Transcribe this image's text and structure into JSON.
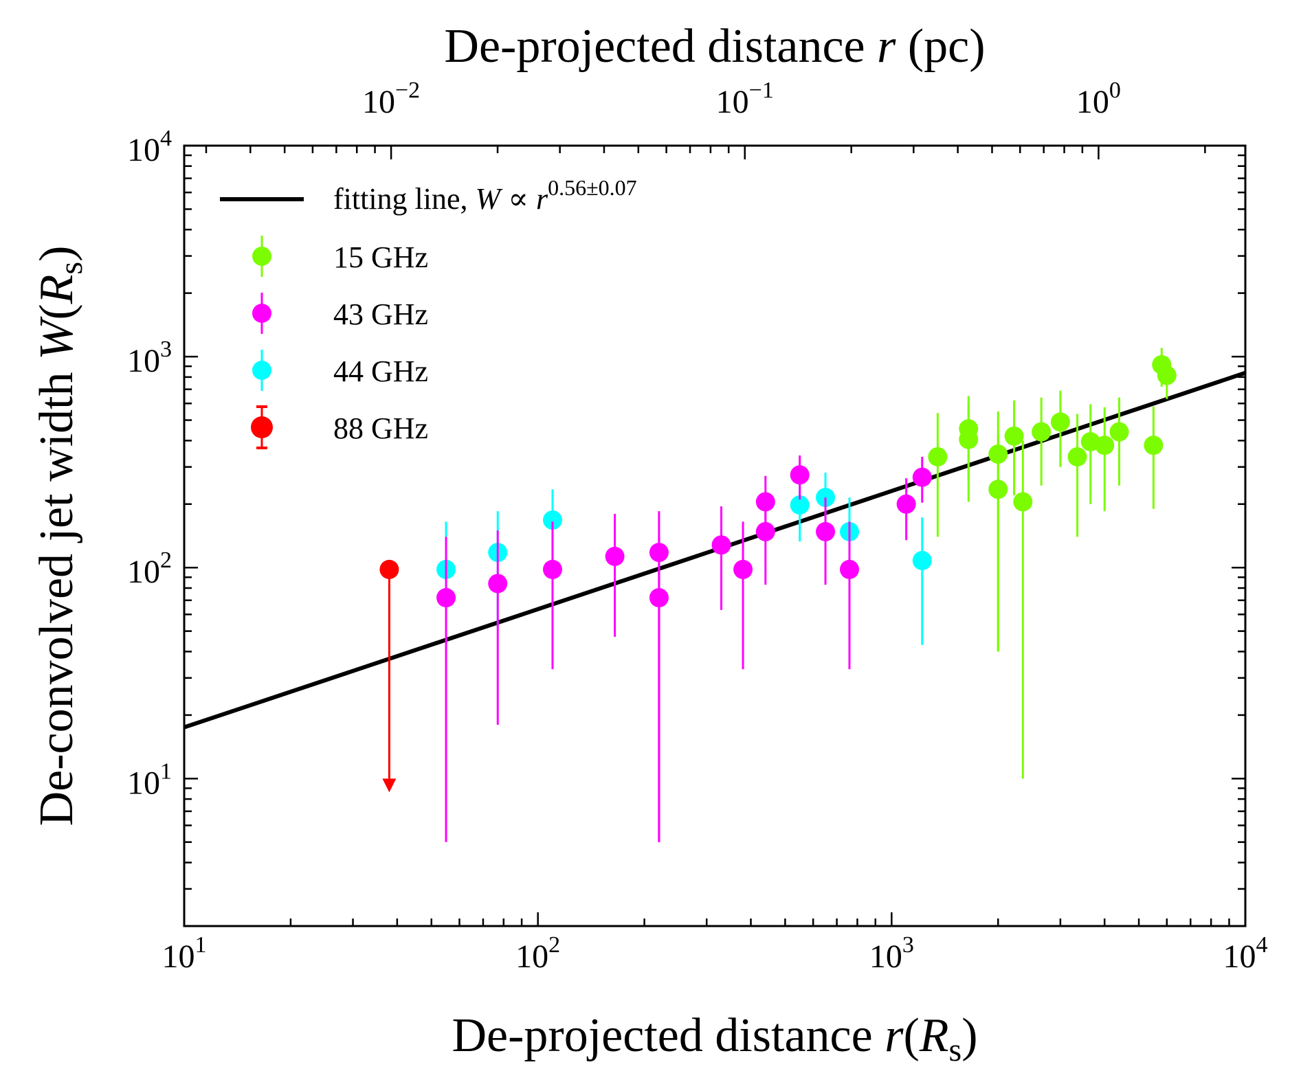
{
  "chart_data": {
    "type": "scatter",
    "x_scale": "log",
    "y_scale": "log",
    "xlim": [
      10,
      10000
    ],
    "ylim": [
      2,
      10000
    ],
    "top_axis_lim": [
      0.0026,
      2.6
    ],
    "xlabel": {
      "prefix": "De-projected distance ",
      "var": "r",
      "open": "(",
      "sym": "R",
      "sub": "s",
      "close": ")"
    },
    "ylabel": {
      "prefix": "De-convolved jet width ",
      "var": "W",
      "open": "(",
      "sym": "R",
      "sub": "s",
      "close": ")"
    },
    "top_label": {
      "prefix": "De-projected distance ",
      "var": "r",
      "suffix": " (pc)"
    },
    "x_ticks": [
      {
        "value": 10,
        "base": "10",
        "exp": "1"
      },
      {
        "value": 100,
        "base": "10",
        "exp": "2"
      },
      {
        "value": 1000,
        "base": "10",
        "exp": "3"
      },
      {
        "value": 10000,
        "base": "10",
        "exp": "4"
      }
    ],
    "y_ticks": [
      {
        "value": 10,
        "base": "10",
        "exp": "1"
      },
      {
        "value": 100,
        "base": "10",
        "exp": "2"
      },
      {
        "value": 1000,
        "base": "10",
        "exp": "3"
      },
      {
        "value": 10000,
        "base": "10",
        "exp": "4"
      }
    ],
    "top_ticks": [
      {
        "value": 0.01,
        "base": "10",
        "exp": "−2"
      },
      {
        "value": 0.1,
        "base": "10",
        "exp": "−1"
      },
      {
        "value": 1,
        "base": "10",
        "exp": "0"
      }
    ],
    "fit_line": {
      "legend": {
        "text": "fitting line, ",
        "var": "W",
        "rel": " ∝ ",
        "base": "r",
        "exp": "0.56±0.07"
      },
      "color": "#000000",
      "x_range": [
        10,
        10000
      ],
      "y_at_x10": 17.5,
      "slope": 0.56
    },
    "legend_position": "upper-left",
    "series": [
      {
        "name": "15 GHz",
        "color": "#7cfc00",
        "points": [
          {
            "x": 1350,
            "y": 335,
            "ylo": 140,
            "yhi": 540
          },
          {
            "x": 1650,
            "y": 455,
            "ylo": 260,
            "yhi": 650
          },
          {
            "x": 1650,
            "y": 405,
            "ylo": 205,
            "yhi": 600
          },
          {
            "x": 2000,
            "y": 345,
            "ylo": 40,
            "yhi": 550
          },
          {
            "x": 2000,
            "y": 235,
            "ylo": 40,
            "yhi": 430
          },
          {
            "x": 2220,
            "y": 420,
            "ylo": 220,
            "yhi": 620
          },
          {
            "x": 2350,
            "y": 205,
            "ylo": 10,
            "yhi": 400
          },
          {
            "x": 2650,
            "y": 440,
            "ylo": 245,
            "yhi": 640
          },
          {
            "x": 3000,
            "y": 490,
            "ylo": 300,
            "yhi": 690
          },
          {
            "x": 3350,
            "y": 335,
            "ylo": 140,
            "yhi": 535
          },
          {
            "x": 3650,
            "y": 395,
            "ylo": 200,
            "yhi": 595
          },
          {
            "x": 4000,
            "y": 380,
            "ylo": 185,
            "yhi": 575
          },
          {
            "x": 4400,
            "y": 440,
            "ylo": 245,
            "yhi": 640
          },
          {
            "x": 5500,
            "y": 380,
            "ylo": 190,
            "yhi": 580
          },
          {
            "x": 5800,
            "y": 915,
            "ylo": 720,
            "yhi": 1100
          },
          {
            "x": 6000,
            "y": 815,
            "ylo": 630,
            "yhi": 1000
          }
        ]
      },
      {
        "name": "43 GHz",
        "color": "#ff00ff",
        "points": [
          {
            "x": 55,
            "y": 72,
            "ylo": 5,
            "yhi": 140
          },
          {
            "x": 77,
            "y": 84,
            "ylo": 18,
            "yhi": 150
          },
          {
            "x": 110,
            "y": 98,
            "ylo": 33,
            "yhi": 165
          },
          {
            "x": 165,
            "y": 113,
            "ylo": 47,
            "yhi": 180
          },
          {
            "x": 220,
            "y": 118,
            "ylo": 5,
            "yhi": 185
          },
          {
            "x": 220,
            "y": 72,
            "ylo": 5,
            "yhi": 140
          },
          {
            "x": 330,
            "y": 128,
            "ylo": 63,
            "yhi": 195
          },
          {
            "x": 380,
            "y": 98,
            "ylo": 33,
            "yhi": 165
          },
          {
            "x": 440,
            "y": 205,
            "ylo": 140,
            "yhi": 272
          },
          {
            "x": 440,
            "y": 148,
            "ylo": 83,
            "yhi": 215
          },
          {
            "x": 550,
            "y": 275,
            "ylo": 210,
            "yhi": 340
          },
          {
            "x": 650,
            "y": 148,
            "ylo": 83,
            "yhi": 215
          },
          {
            "x": 760,
            "y": 98,
            "ylo": 33,
            "yhi": 165
          },
          {
            "x": 1100,
            "y": 200,
            "ylo": 135,
            "yhi": 265
          },
          {
            "x": 1220,
            "y": 268,
            "ylo": 203,
            "yhi": 335
          }
        ]
      },
      {
        "name": "44 GHz",
        "color": "#00ffff",
        "points": [
          {
            "x": 55,
            "y": 98,
            "ylo": 33,
            "yhi": 165
          },
          {
            "x": 77,
            "y": 118,
            "ylo": 52,
            "yhi": 185
          },
          {
            "x": 110,
            "y": 168,
            "ylo": 100,
            "yhi": 235
          },
          {
            "x": 550,
            "y": 198,
            "ylo": 133,
            "yhi": 265
          },
          {
            "x": 650,
            "y": 215,
            "ylo": 150,
            "yhi": 282
          },
          {
            "x": 760,
            "y": 148,
            "ylo": 83,
            "yhi": 215
          },
          {
            "x": 1220,
            "y": 108,
            "ylo": 43,
            "yhi": 173
          }
        ]
      },
      {
        "name": "88 GHz",
        "color": "#ff0000",
        "points": [
          {
            "x": 38,
            "y": 98,
            "upper_limit": true,
            "arrow_to": 9
          }
        ]
      }
    ]
  }
}
